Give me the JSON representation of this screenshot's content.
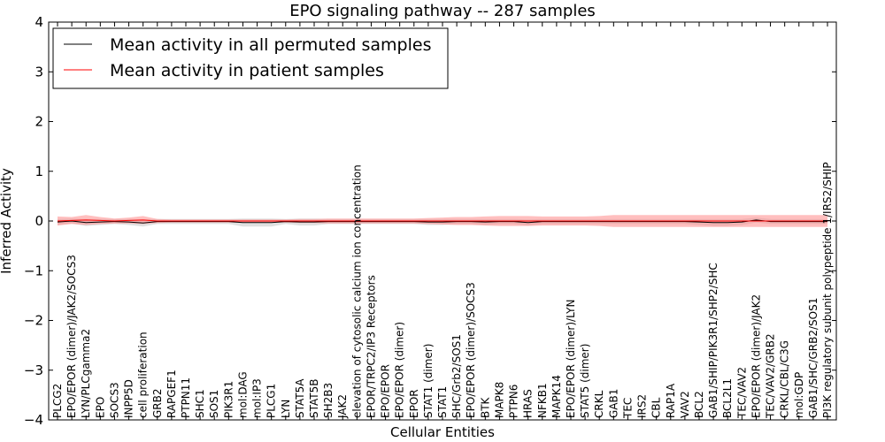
{
  "chart_data": {
    "type": "line",
    "title": "EPO signaling pathway -- 287 samples",
    "xlabel": "Cellular Entities",
    "ylabel": "Inferred Activity",
    "ylim": [
      -4,
      4
    ],
    "yticks": [
      "−4",
      "−3",
      "−2",
      "−1",
      "0",
      "1",
      "2",
      "3",
      "4"
    ],
    "legend_position": "upper-left",
    "categories": [
      "PLCG2",
      "EPO/EPOR (dimer)/JAK2/SOCS3",
      "LYN/PLCgamma2",
      "EPO",
      "SOCS3",
      "INPP5D",
      "cell proliferation",
      "GRB2",
      "RAPGEF1",
      "PTPN11",
      "SHC1",
      "SOS1",
      "PIK3R1",
      "mol:DAG",
      "mol:IP3",
      "PLCG1",
      "LYN",
      "STAT5A",
      "STAT5B",
      "SH2B3",
      "JAK2",
      "elevation of cytosolic calcium ion concentration",
      "EPOR/TRPC2/IP3 Receptors",
      "EPO/EPOR",
      "EPO/EPOR (dimer)",
      "EPOR",
      "STAT1 (dimer)",
      "STAT1",
      "SHC/Grb2/SOS1",
      "EPO/EPOR (dimer)/SOCS3",
      "BTK",
      "MAPK8",
      "PTPN6",
      "HRAS",
      "NFKB1",
      "MAPK14",
      "EPO/EPOR (dimer)/LYN",
      "STAT5 (dimer)",
      "CRKL",
      "GAB1",
      "TEC",
      "IRS2",
      "CBL",
      "RAP1A",
      "VAV2",
      "BCL2",
      "GAB1/SHIP/PIK3R1/SHP2/SHC",
      "BCL2L1",
      "TEC/VAV2",
      "EPO/EPOR (dimer)/JAK2",
      "TEC/VAV2/GRB2",
      "CRKL/CBL/C3G",
      "mol:GDP",
      "GAB1/SHC/GRB2/SOS1",
      "PI3K regulatory subunit polypeptide 1/IRS2/SHIP"
    ],
    "series": [
      {
        "name": "Mean activity in all permuted samples",
        "color": "#000000",
        "band_color": "#cccccc",
        "values": [
          -0.02,
          0.0,
          -0.03,
          -0.02,
          -0.01,
          -0.02,
          -0.04,
          -0.01,
          -0.01,
          -0.01,
          -0.01,
          -0.01,
          -0.01,
          -0.03,
          -0.03,
          -0.03,
          -0.01,
          -0.02,
          -0.02,
          -0.01,
          -0.01,
          -0.01,
          -0.01,
          -0.01,
          -0.01,
          -0.01,
          -0.02,
          -0.02,
          -0.01,
          -0.01,
          -0.02,
          -0.01,
          -0.01,
          -0.03,
          -0.01,
          -0.01,
          -0.01,
          -0.01,
          -0.01,
          -0.01,
          -0.01,
          -0.01,
          -0.01,
          -0.01,
          -0.01,
          -0.02,
          -0.03,
          -0.03,
          -0.02,
          0.02,
          -0.01,
          -0.01,
          -0.01,
          -0.01,
          -0.01
        ],
        "std": [
          0.06,
          0.05,
          0.07,
          0.06,
          0.05,
          0.06,
          0.07,
          0.05,
          0.05,
          0.05,
          0.05,
          0.05,
          0.05,
          0.08,
          0.08,
          0.08,
          0.05,
          0.07,
          0.07,
          0.05,
          0.05,
          0.05,
          0.05,
          0.05,
          0.05,
          0.05,
          0.06,
          0.06,
          0.05,
          0.05,
          0.06,
          0.05,
          0.05,
          0.06,
          0.05,
          0.05,
          0.05,
          0.05,
          0.05,
          0.05,
          0.05,
          0.05,
          0.05,
          0.05,
          0.05,
          0.06,
          0.07,
          0.07,
          0.06,
          0.05,
          0.05,
          0.05,
          0.05,
          0.05,
          0.05
        ]
      },
      {
        "name": "Mean activity in patient samples",
        "color": "#ff0000",
        "band_color": "#ff8a8a",
        "values": [
          0.0,
          0.01,
          0.02,
          0.01,
          0.0,
          0.01,
          0.02,
          0.0,
          0.0,
          0.0,
          0.0,
          0.0,
          0.0,
          0.0,
          0.0,
          0.0,
          0.0,
          0.0,
          0.0,
          0.0,
          0.0,
          0.0,
          0.0,
          0.0,
          0.0,
          0.0,
          0.0,
          0.0,
          0.0,
          0.0,
          0.0,
          0.0,
          0.0,
          0.0,
          0.0,
          0.0,
          0.0,
          0.0,
          0.0,
          0.0,
          0.0,
          0.0,
          0.0,
          0.0,
          0.0,
          0.0,
          0.0,
          0.0,
          0.0,
          0.0,
          0.0,
          0.0,
          0.0,
          0.0,
          0.0
        ],
        "std": [
          0.09,
          0.07,
          0.1,
          0.07,
          0.05,
          0.06,
          0.08,
          0.04,
          0.03,
          0.03,
          0.03,
          0.03,
          0.03,
          0.03,
          0.03,
          0.03,
          0.03,
          0.04,
          0.04,
          0.05,
          0.05,
          0.05,
          0.05,
          0.05,
          0.05,
          0.05,
          0.06,
          0.07,
          0.08,
          0.08,
          0.09,
          0.1,
          0.1,
          0.1,
          0.09,
          0.09,
          0.09,
          0.09,
          0.1,
          0.12,
          0.12,
          0.12,
          0.12,
          0.12,
          0.12,
          0.12,
          0.12,
          0.12,
          0.12,
          0.12,
          0.12,
          0.12,
          0.12,
          0.12,
          0.12
        ]
      }
    ]
  }
}
